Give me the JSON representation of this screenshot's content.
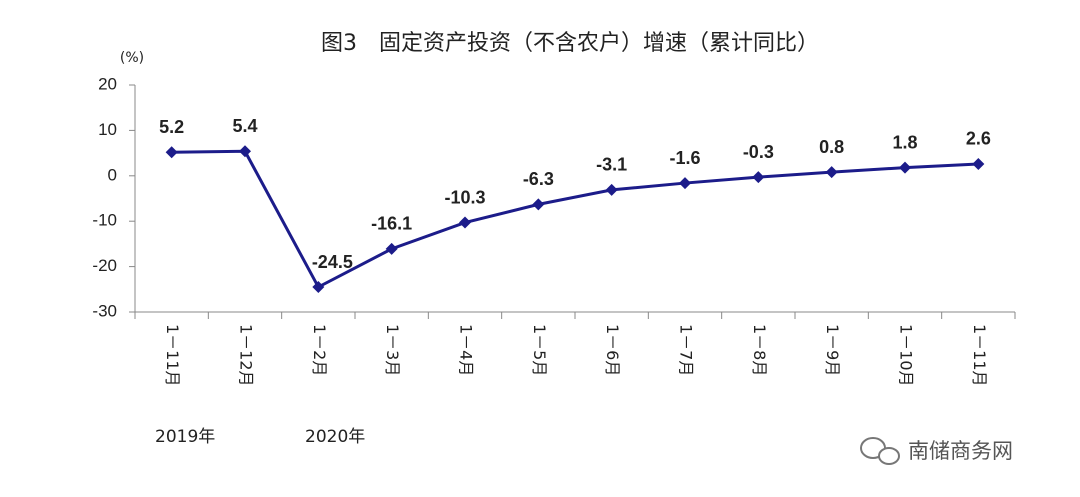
{
  "chart_data": {
    "type": "line",
    "title": "图3　固定资产投资（不含农户）增速（累计同比）",
    "y_unit": "(%)",
    "categories": [
      "1－11月",
      "1－12月",
      "1－2月",
      "1－3月",
      "1－4月",
      "1－5月",
      "1－6月",
      "1－7月",
      "1－8月",
      "1－9月",
      "1－10月",
      "1－11月"
    ],
    "values": [
      5.2,
      5.4,
      -24.5,
      -16.1,
      -10.3,
      -6.3,
      -3.1,
      -1.6,
      -0.3,
      0.8,
      1.8,
      2.6
    ],
    "color": "#1c1c8a",
    "ylim": [
      -30,
      20
    ],
    "yticks": [
      -30,
      -20,
      -10,
      0,
      10,
      20
    ],
    "grid": false,
    "year_labels": [
      "2019年",
      "2020年"
    ]
  },
  "watermark": "南储商务网"
}
